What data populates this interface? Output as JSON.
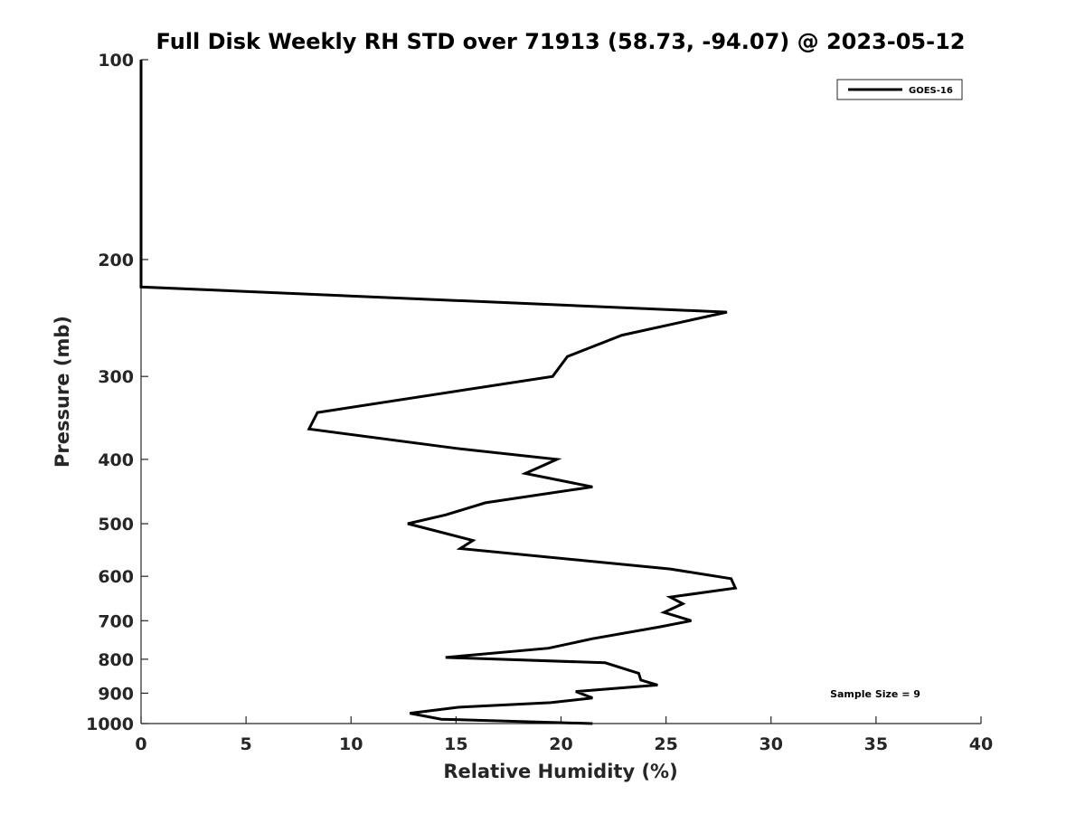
{
  "chart_data": {
    "type": "line",
    "title": "Full Disk Weekly RH STD over 71913 (58.73, -94.07) @ 2023-05-12",
    "xlabel": "Relative Humidity (%)",
    "ylabel": "Pressure (mb)",
    "xlim": [
      0,
      40
    ],
    "ylim": [
      100,
      1000
    ],
    "y_scale": "log",
    "y_reversed": true,
    "x_ticks": [
      0,
      5,
      10,
      15,
      20,
      25,
      30,
      35,
      40
    ],
    "y_ticks": [
      100,
      200,
      300,
      400,
      500,
      600,
      700,
      800,
      900,
      1000
    ],
    "grid": false,
    "legend_position": "top-right",
    "annotation": "Sample Size = 9",
    "series": [
      {
        "name": "GOES-16",
        "color": "#000000",
        "points": [
          {
            "x": 0,
            "y": 100
          },
          {
            "x": 0,
            "y": 200
          },
          {
            "x": 0,
            "y": 220
          },
          {
            "x": 27.9,
            "y": 240
          },
          {
            "x": 22.9,
            "y": 260
          },
          {
            "x": 20.3,
            "y": 280
          },
          {
            "x": 19.6,
            "y": 300
          },
          {
            "x": 8.4,
            "y": 340
          },
          {
            "x": 8.0,
            "y": 360
          },
          {
            "x": 15.0,
            "y": 385
          },
          {
            "x": 19.8,
            "y": 400
          },
          {
            "x": 18.3,
            "y": 420
          },
          {
            "x": 21.5,
            "y": 440
          },
          {
            "x": 16.4,
            "y": 465
          },
          {
            "x": 14.5,
            "y": 485
          },
          {
            "x": 12.7,
            "y": 500
          },
          {
            "x": 15.8,
            "y": 530
          },
          {
            "x": 15.2,
            "y": 545
          },
          {
            "x": 25.2,
            "y": 585
          },
          {
            "x": 28.1,
            "y": 605
          },
          {
            "x": 28.3,
            "y": 625
          },
          {
            "x": 25.2,
            "y": 645
          },
          {
            "x": 25.8,
            "y": 660
          },
          {
            "x": 24.9,
            "y": 680
          },
          {
            "x": 26.2,
            "y": 700
          },
          {
            "x": 24.7,
            "y": 715
          },
          {
            "x": 21.5,
            "y": 745
          },
          {
            "x": 19.4,
            "y": 770
          },
          {
            "x": 14.5,
            "y": 795
          },
          {
            "x": 22.1,
            "y": 810
          },
          {
            "x": 23.7,
            "y": 840
          },
          {
            "x": 23.8,
            "y": 860
          },
          {
            "x": 24.6,
            "y": 875
          },
          {
            "x": 20.7,
            "y": 895
          },
          {
            "x": 21.5,
            "y": 915
          },
          {
            "x": 19.5,
            "y": 930
          },
          {
            "x": 15.1,
            "y": 945
          },
          {
            "x": 12.8,
            "y": 965
          },
          {
            "x": 14.3,
            "y": 985
          },
          {
            "x": 21.5,
            "y": 1000
          }
        ]
      }
    ]
  }
}
